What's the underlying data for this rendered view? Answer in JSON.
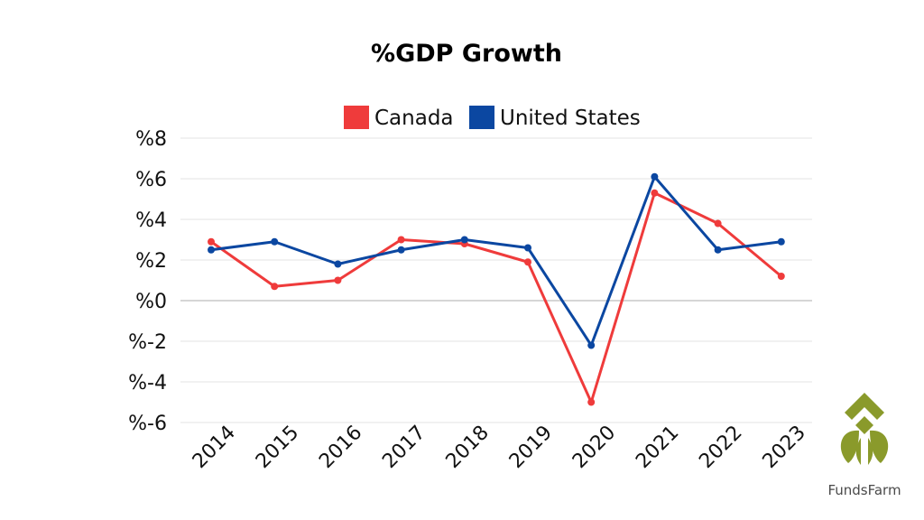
{
  "chart_data": {
    "type": "line",
    "title": "%GDP Growth",
    "categories": [
      "2014",
      "2015",
      "2016",
      "2017",
      "2018",
      "2019",
      "2020",
      "2021",
      "2022",
      "2023"
    ],
    "series": [
      {
        "name": "Canada",
        "color": "#ef3b3b",
        "values": [
          2.9,
          0.7,
          1.0,
          3.0,
          2.8,
          1.9,
          -5.0,
          5.3,
          3.8,
          1.2
        ]
      },
      {
        "name": "United States",
        "color": "#0b47a1",
        "values": [
          2.5,
          2.9,
          1.8,
          2.5,
          3.0,
          2.6,
          -2.2,
          6.1,
          2.5,
          2.9
        ]
      }
    ],
    "y_ticks": [
      "%8",
      "%6",
      "%4",
      "%2",
      "%0",
      "%-2",
      "%-4",
      "%-6"
    ],
    "y_tick_values": [
      8,
      6,
      4,
      2,
      0,
      -2,
      -4,
      -6
    ],
    "ylim": [
      -6,
      8
    ],
    "xlabel": "",
    "ylabel": "",
    "grid": true,
    "legend_position": "top-center"
  },
  "logo": {
    "text": "FundsFarm",
    "icon": "leaf-logo-icon",
    "color": "#8a9a2b"
  }
}
